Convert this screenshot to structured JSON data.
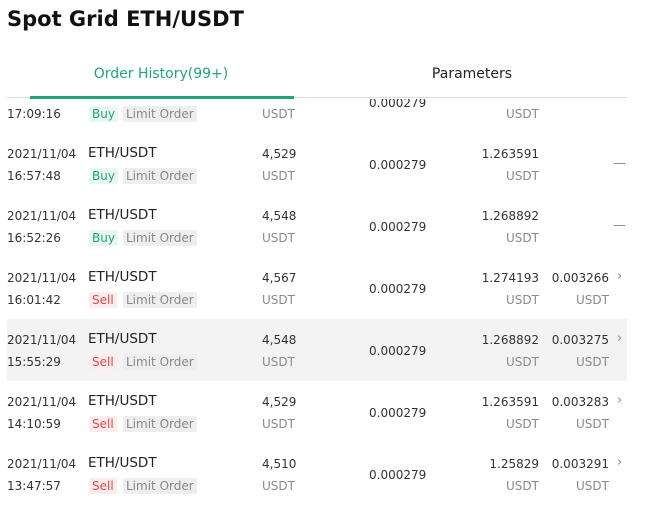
{
  "header": {
    "title": "Spot Grid ETH/USDT"
  },
  "tabs": [
    {
      "label": "Order History(99+)",
      "active": true
    },
    {
      "label": "Parameters",
      "active": false
    }
  ],
  "rows": [
    {
      "time": "17:09:16",
      "side": "Buy",
      "order_type": "Limit Order",
      "amount_unit": "USDT",
      "price": "0.000279",
      "fill_unit": "USDT"
    },
    {
      "date": "2021/11/04",
      "time": "16:57:48",
      "pair": "ETH/USDT",
      "side": "Buy",
      "order_type": "Limit Order",
      "amount": "4,529",
      "amount_unit": "USDT",
      "price": "0.000279",
      "fill": "1.263591",
      "fill_unit": "USDT",
      "mark": "—"
    },
    {
      "date": "2021/11/04",
      "time": "16:52:26",
      "pair": "ETH/USDT",
      "side": "Buy",
      "order_type": "Limit Order",
      "amount": "4,548",
      "amount_unit": "USDT",
      "price": "0.000279",
      "fill": "1.268892",
      "fill_unit": "USDT",
      "mark": "—"
    },
    {
      "date": "2021/11/04",
      "time": "16:01:42",
      "pair": "ETH/USDT",
      "side": "Sell",
      "order_type": "Limit Order",
      "amount": "4,567",
      "amount_unit": "USDT",
      "price": "0.000279",
      "fill": "1.274193",
      "fill_unit": "USDT",
      "profit": "0.003266",
      "profit_unit": "USDT"
    },
    {
      "date": "2021/11/04",
      "time": "15:55:29",
      "pair": "ETH/USDT",
      "side": "Sell",
      "order_type": "Limit Order",
      "amount": "4,548",
      "amount_unit": "USDT",
      "price": "0.000279",
      "fill": "1.268892",
      "fill_unit": "USDT",
      "profit": "0.003275",
      "profit_unit": "USDT",
      "highlight": true
    },
    {
      "date": "2021/11/04",
      "time": "14:10:59",
      "pair": "ETH/USDT",
      "side": "Sell",
      "order_type": "Limit Order",
      "amount": "4,529",
      "amount_unit": "USDT",
      "price": "0.000279",
      "fill": "1.263591",
      "fill_unit": "USDT",
      "profit": "0.003283",
      "profit_unit": "USDT"
    },
    {
      "date": "2021/11/04",
      "time": "13:47:57",
      "pair": "ETH/USDT",
      "side": "Sell",
      "order_type": "Limit Order",
      "amount": "4,510",
      "amount_unit": "USDT",
      "price": "0.000279",
      "fill": "1.25829",
      "fill_unit": "USDT",
      "profit": "0.003291",
      "profit_unit": "USDT"
    }
  ]
}
